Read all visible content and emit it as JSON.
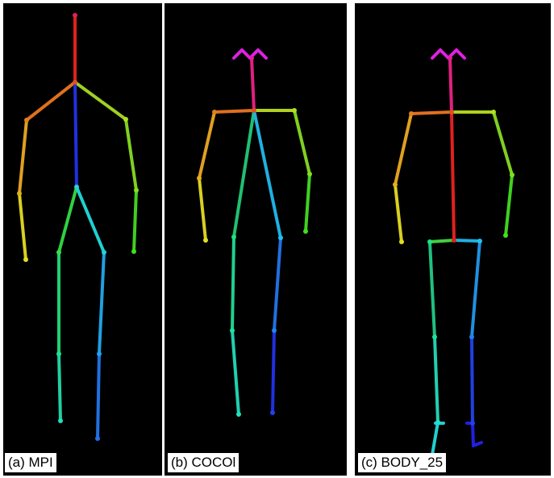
{
  "panels": [
    {
      "caption": "(a) MPI"
    },
    {
      "caption": "(b) COCOl"
    },
    {
      "caption": "(c) BODY_25"
    }
  ]
}
